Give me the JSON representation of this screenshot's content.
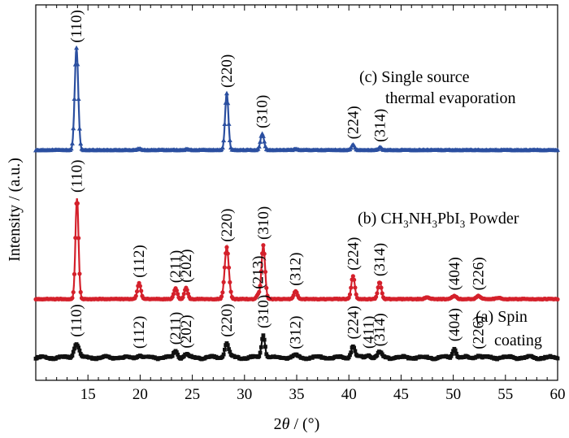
{
  "chart_data": {
    "type": "line",
    "xlabel_prefix": "2",
    "xlabel_theta": "θ",
    "xlabel_unit": " / (°)",
    "ylabel": "Intensity / (a.u.)",
    "xlim": [
      10,
      60
    ],
    "xticks": [
      "15",
      "20",
      "25",
      "30",
      "35",
      "40",
      "45",
      "50",
      "55",
      "60"
    ],
    "yaxis_ticks": "none",
    "series": [
      {
        "key": "c",
        "annotation_line1": "(c) Single source",
        "annotation_line2": "thermal evaporation",
        "color": "#2b4fa0",
        "marker": "triangle",
        "baseline": 1.0,
        "noise": 0.03,
        "peaks": [
          {
            "x": 13.9,
            "h": 4.65,
            "w": 0.17,
            "label": "(110)"
          },
          {
            "x": 19.95,
            "h": 0.07,
            "w": 0.15,
            "label": ""
          },
          {
            "x": 24.5,
            "h": 0.05,
            "w": 0.15,
            "label": ""
          },
          {
            "x": 28.3,
            "h": 2.6,
            "w": 0.16,
            "label": "(220)"
          },
          {
            "x": 31.7,
            "h": 0.75,
            "w": 0.17,
            "label": "(310)"
          },
          {
            "x": 34.9,
            "h": 0.05,
            "w": 0.15,
            "label": ""
          },
          {
            "x": 40.4,
            "h": 0.25,
            "w": 0.16,
            "label": "(224)"
          },
          {
            "x": 43.0,
            "h": 0.12,
            "w": 0.16,
            "label": "(314)"
          }
        ]
      },
      {
        "key": "b",
        "annotation_prefix": "(b) CH",
        "annotation_sub1": "3",
        "annotation_mid1": "NH",
        "annotation_sub2": "3",
        "annotation_mid2": "PbI",
        "annotation_sub3": "3",
        "annotation_suffix": " Powder",
        "color": "#d4202b",
        "marker": "circle",
        "baseline": -2.7,
        "noise": 0.03,
        "peaks": [
          {
            "x": 13.95,
            "h": 4.6,
            "w": 0.15,
            "label": "(110)"
          },
          {
            "x": 19.9,
            "h": 0.72,
            "w": 0.17,
            "label": "(112)"
          },
          {
            "x": 23.4,
            "h": 0.48,
            "w": 0.16,
            "label": "(211)"
          },
          {
            "x": 24.4,
            "h": 0.5,
            "w": 0.16,
            "label": "(202)"
          },
          {
            "x": 28.3,
            "h": 2.35,
            "w": 0.2,
            "label": "(220)"
          },
          {
            "x": 31.3,
            "h": 0.2,
            "w": 0.15,
            "label": "(213)"
          },
          {
            "x": 31.8,
            "h": 2.45,
            "w": 0.17,
            "label": "(310)"
          },
          {
            "x": 34.9,
            "h": 0.35,
            "w": 0.17,
            "label": "(312)"
          },
          {
            "x": 40.4,
            "h": 1.05,
            "w": 0.17,
            "label": "(224)"
          },
          {
            "x": 42.95,
            "h": 0.78,
            "w": 0.17,
            "label": "(314)"
          },
          {
            "x": 47.5,
            "h": 0.08,
            "w": 0.2,
            "label": ""
          },
          {
            "x": 50.1,
            "h": 0.14,
            "w": 0.2,
            "label": "(404)"
          },
          {
            "x": 52.4,
            "h": 0.14,
            "w": 0.2,
            "label": "(226)"
          },
          {
            "x": 54.3,
            "h": 0.06,
            "w": 0.2,
            "label": ""
          }
        ]
      },
      {
        "key": "a",
        "annotation_line1": "(a) Spin",
        "annotation_line2": "coating",
        "color": "#111111",
        "marker": "square",
        "baseline": -5.8,
        "noise": 0.06,
        "peaks": [
          {
            "x": 13.9,
            "h": 0.65,
            "w": 0.24,
            "label": "(110)"
          },
          {
            "x": 19.9,
            "h": 0.12,
            "w": 0.2,
            "label": "(112)"
          },
          {
            "x": 23.4,
            "h": 0.3,
            "w": 0.18,
            "label": "(211)"
          },
          {
            "x": 24.4,
            "h": 0.14,
            "w": 0.18,
            "label": "(202)"
          },
          {
            "x": 28.3,
            "h": 0.65,
            "w": 0.2,
            "label": "(220)"
          },
          {
            "x": 31.8,
            "h": 1.05,
            "w": 0.17,
            "label": "(310)"
          },
          {
            "x": 34.9,
            "h": 0.1,
            "w": 0.2,
            "label": "(312)"
          },
          {
            "x": 40.4,
            "h": 0.55,
            "w": 0.18,
            "label": "(224)"
          },
          {
            "x": 41.9,
            "h": 0.12,
            "w": 0.2,
            "label": "(411)"
          },
          {
            "x": 42.95,
            "h": 0.22,
            "w": 0.2,
            "label": "(314)"
          },
          {
            "x": 50.1,
            "h": 0.45,
            "w": 0.16,
            "label": "(404)"
          },
          {
            "x": 52.4,
            "h": 0.1,
            "w": 0.2,
            "label": "(226)"
          }
        ]
      }
    ]
  }
}
